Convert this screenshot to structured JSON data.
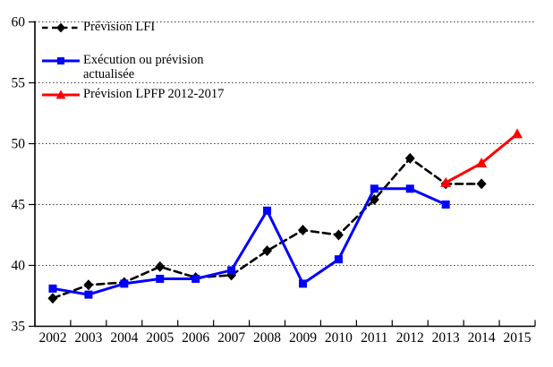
{
  "chart_data": {
    "type": "line",
    "title": "",
    "xlabel": "",
    "ylabel": "",
    "categories": [
      "2002",
      "2003",
      "2004",
      "2005",
      "2006",
      "2007",
      "2008",
      "2009",
      "2010",
      "2011",
      "2012",
      "2013",
      "2014",
      "2015"
    ],
    "series": [
      {
        "name": "Prévision LFI",
        "color": "#000000",
        "line_style": "dashed",
        "marker": "diamond",
        "values": [
          37.3,
          38.4,
          38.6,
          39.9,
          39.0,
          39.2,
          41.2,
          42.9,
          42.5,
          45.4,
          48.8,
          46.7,
          46.7,
          null
        ]
      },
      {
        "name": "Exécution ou prévision actualisée",
        "color": "#0000ff",
        "line_style": "solid",
        "marker": "square",
        "values": [
          38.1,
          37.6,
          38.5,
          38.9,
          38.9,
          39.6,
          44.5,
          38.5,
          40.5,
          46.3,
          46.3,
          45.0,
          null,
          null
        ]
      },
      {
        "name": "Prévision LPFP 2012-2017",
        "color": "#ff0000",
        "line_style": "solid",
        "marker": "triangle",
        "values": [
          null,
          null,
          null,
          null,
          null,
          null,
          null,
          null,
          null,
          null,
          null,
          46.8,
          48.4,
          50.8
        ]
      }
    ],
    "ylim": [
      35,
      60
    ],
    "yticks": [
      35,
      40,
      45,
      50,
      55,
      60
    ],
    "grid": "horizontal-dotted",
    "legend_position": "top-left"
  },
  "colors": {
    "background": "#ffffff",
    "axis": "#000000",
    "grid": "#3c3c3c",
    "text": "#000000"
  }
}
